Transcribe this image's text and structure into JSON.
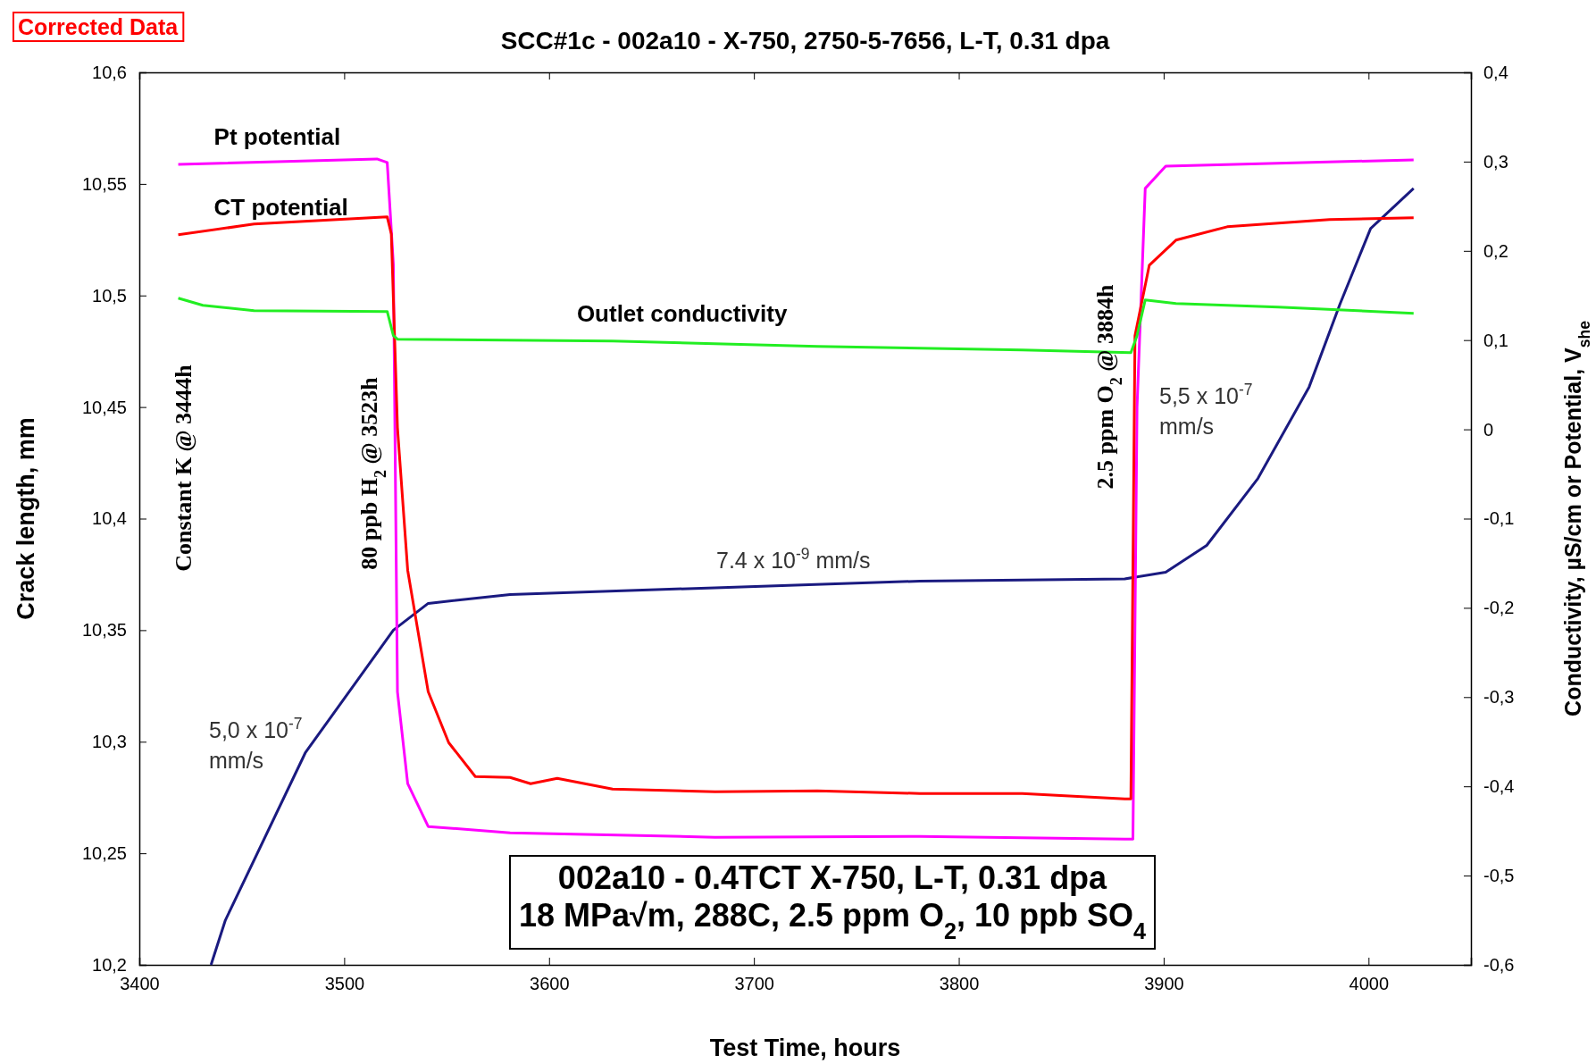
{
  "chart_data": {
    "type": "line",
    "title": "SCC#1c - 002a10 - X-750, 2750-5-7656, L-T, 0.31 dpa",
    "xlabel": "Test Time, hours",
    "ylabel": "Crack length, mm",
    "y2label": "Conductivity, µS/cm or Potential, V$_{she}$",
    "xlim": [
      3400,
      4050
    ],
    "xticks": [
      3400,
      3500,
      3600,
      3700,
      3800,
      3900,
      4000
    ],
    "ylim": [
      10.2,
      10.6
    ],
    "yticks": [
      {
        "value": 10.2,
        "label": "10,2"
      },
      {
        "value": 10.25,
        "label": "10,25"
      },
      {
        "value": 10.3,
        "label": "10,3"
      },
      {
        "value": 10.35,
        "label": "10,35"
      },
      {
        "value": 10.4,
        "label": "10,4"
      },
      {
        "value": 10.45,
        "label": "10,45"
      },
      {
        "value": 10.5,
        "label": "10,5"
      },
      {
        "value": 10.55,
        "label": "10,55"
      },
      {
        "value": 10.6,
        "label": "10,6"
      }
    ],
    "y2lim": [
      -0.6,
      0.4
    ],
    "y2ticks": [
      {
        "value": -0.6,
        "label": "-0,6"
      },
      {
        "value": -0.5,
        "label": "-0,5"
      },
      {
        "value": -0.4,
        "label": "-0,4"
      },
      {
        "value": -0.3,
        "label": "-0,3"
      },
      {
        "value": -0.2,
        "label": "-0,2"
      },
      {
        "value": -0.1,
        "label": "-0,1"
      },
      0,
      {
        "value": 0.1,
        "label": "0,1"
      },
      {
        "value": 0.2,
        "label": "0,2"
      },
      {
        "value": 0.3,
        "label": "0,3"
      },
      {
        "value": 0.4,
        "label": "0,4"
      }
    ],
    "grid": false,
    "legend": false,
    "marker": "none",
    "line_style": "solid",
    "series": [
      {
        "color": "#1a1a80",
        "x": [
          3435,
          3442,
          3481,
          3524,
          3541,
          3581,
          3681,
          3781,
          3881,
          3901,
          3921,
          3946,
          3971,
          3986,
          4001,
          4022
        ],
        "values": [
          10.2,
          10.22,
          10.295,
          10.35,
          10.362,
          10.366,
          10.369,
          10.372,
          10.373,
          10.376,
          10.388,
          10.418,
          10.459,
          10.496,
          10.53,
          10.548
        ]
      },
      {
        "name": "Pt potential",
        "color": "#ff00ff",
        "axis": "y2",
        "x": [
          3419,
          3516,
          3521,
          3524,
          3526,
          3531,
          3541,
          3581,
          3681,
          3781,
          3881,
          3885,
          3887,
          3891,
          3901,
          4022
        ],
        "values": [
          0.297,
          0.303,
          0.299,
          0.185,
          -0.294,
          -0.397,
          -0.445,
          -0.452,
          -0.457,
          -0.456,
          -0.459,
          -0.459,
          0.025,
          0.27,
          0.295,
          0.302
        ]
      },
      {
        "name": "CT potential",
        "color": "#ff0000",
        "axis": "y2",
        "x": [
          3419,
          3456,
          3521,
          3523,
          3526,
          3531,
          3541,
          3551,
          3564,
          3581,
          3591,
          3604,
          3631,
          3681,
          3731,
          3781,
          3831,
          3881,
          3884,
          3886,
          3893,
          3906,
          3931,
          3981,
          4022
        ],
        "values": [
          0.218,
          0.23,
          0.238,
          0.219,
          0.002,
          -0.158,
          -0.294,
          -0.351,
          -0.389,
          -0.39,
          -0.397,
          -0.391,
          -0.403,
          -0.406,
          -0.405,
          -0.408,
          -0.408,
          -0.414,
          -0.414,
          0.105,
          0.184,
          0.212,
          0.227,
          0.235,
          0.237
        ]
      },
      {
        "name": "Outlet conductivity",
        "color": "#22ee22",
        "axis": "y2",
        "x": [
          3419,
          3431,
          3456,
          3521,
          3524,
          3526,
          3631,
          3731,
          3831,
          3884,
          3887,
          3891,
          3906,
          3956,
          4022
        ],
        "values": [
          0.147,
          0.139,
          0.133,
          0.132,
          0.105,
          0.101,
          0.099,
          0.093,
          0.089,
          0.086,
          0.105,
          0.145,
          0.141,
          0.137,
          0.13
        ]
      }
    ],
    "annotations": [
      "Corrected Data",
      "002a10 - 0.4TCT X-750, L-T, 0.31 dpa",
      "18 MPa√m, 288C, 2.5 ppm O$_{2}$, 10 ppb SO$_{4}$",
      "Constant K @ 3444h",
      "80 ppb H$_{2}$ @ 3523h",
      "2.5 ppm O$_{2}$ @ 3884h",
      "5,0 x 10$^{-7}$ mm/s",
      "7.4 x 10$^{-9}$ mm/s",
      "5,5 x 10$^{-7}$ mm/s"
    ]
  }
}
